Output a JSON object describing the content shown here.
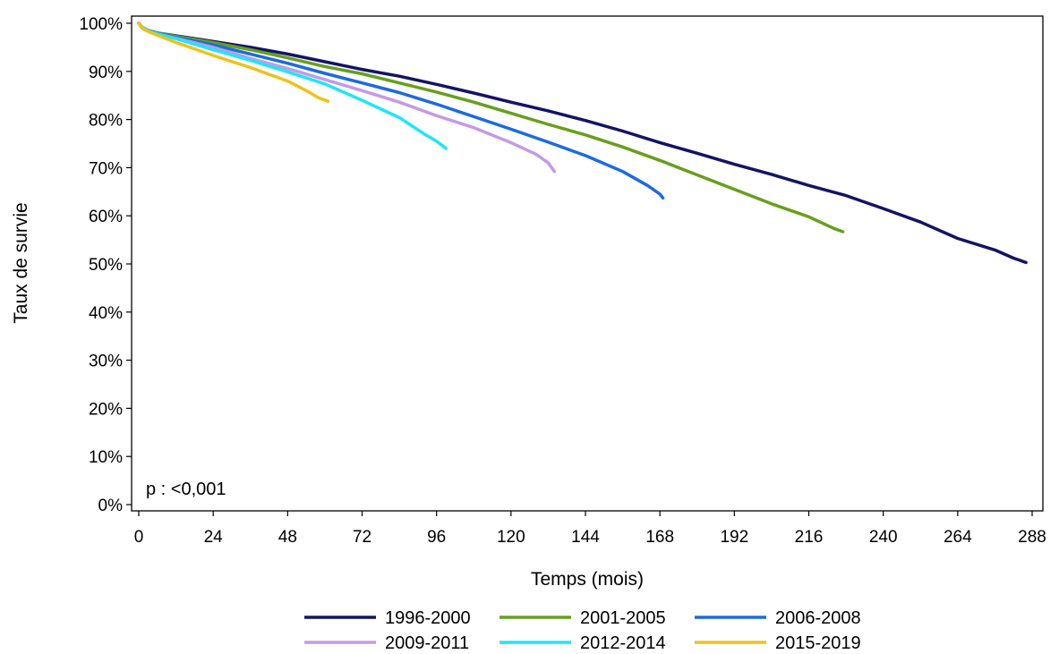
{
  "chart_data": {
    "type": "line",
    "title": "",
    "xlabel": "Temps (mois)",
    "ylabel": "Taux de survie",
    "xlim": [
      0,
      288
    ],
    "ylim": [
      0,
      100
    ],
    "xticks": [
      0,
      24,
      48,
      72,
      96,
      120,
      144,
      168,
      192,
      216,
      240,
      264,
      288
    ],
    "yticks": [
      0,
      10,
      20,
      30,
      40,
      50,
      60,
      70,
      80,
      90,
      100
    ],
    "ytick_labels": [
      "0%",
      "10%",
      "20%",
      "30%",
      "40%",
      "50%",
      "60%",
      "70%",
      "80%",
      "90%",
      "100%"
    ],
    "grid": false,
    "legend_position": "bottom",
    "annotation": "p : <0,001",
    "series": [
      {
        "name": "1996-2000",
        "color": "#141464",
        "x": [
          0,
          1,
          3,
          6,
          12,
          24,
          36,
          48,
          60,
          72,
          84,
          96,
          108,
          120,
          132,
          144,
          156,
          168,
          180,
          192,
          204,
          216,
          228,
          240,
          252,
          264,
          276,
          282,
          286
        ],
        "y": [
          100,
          99.2,
          98.5,
          98.0,
          97.4,
          96.2,
          95.0,
          93.6,
          92.0,
          90.4,
          89.0,
          87.3,
          85.5,
          83.6,
          81.8,
          79.8,
          77.6,
          75.2,
          73.0,
          70.7,
          68.6,
          66.3,
          64.2,
          61.5,
          58.7,
          55.3,
          52.9,
          51.2,
          50.3
        ]
      },
      {
        "name": "2001-2005",
        "color": "#669F1E",
        "x": [
          0,
          1,
          3,
          6,
          12,
          24,
          36,
          48,
          60,
          72,
          84,
          96,
          108,
          120,
          132,
          144,
          156,
          168,
          180,
          192,
          204,
          216,
          224,
          227
        ],
        "y": [
          100,
          99.2,
          98.5,
          98.0,
          97.3,
          96.0,
          94.5,
          92.8,
          91.0,
          89.5,
          87.6,
          85.7,
          83.6,
          81.3,
          79.0,
          76.8,
          74.3,
          71.5,
          68.5,
          65.5,
          62.5,
          59.8,
          57.4,
          56.7
        ]
      },
      {
        "name": "2006-2008",
        "color": "#1C6AE0",
        "x": [
          0,
          1,
          3,
          6,
          12,
          24,
          36,
          48,
          60,
          72,
          84,
          96,
          108,
          120,
          132,
          144,
          156,
          164,
          168,
          169
        ],
        "y": [
          100,
          99.2,
          98.5,
          97.9,
          97.1,
          95.5,
          93.6,
          91.7,
          89.6,
          87.6,
          85.6,
          83.2,
          80.6,
          78.0,
          75.3,
          72.5,
          69.2,
          66.3,
          64.5,
          63.7
        ]
      },
      {
        "name": "2009-2011",
        "color": "#C49AE6",
        "x": [
          0,
          1,
          3,
          6,
          12,
          24,
          36,
          48,
          60,
          72,
          84,
          96,
          108,
          120,
          128,
          132,
          134
        ],
        "y": [
          100,
          99.2,
          98.4,
          97.8,
          96.9,
          95.0,
          92.7,
          90.6,
          88.3,
          86.0,
          83.6,
          80.8,
          78.3,
          75.2,
          72.8,
          71.0,
          69.2
        ]
      },
      {
        "name": "2012-2014",
        "color": "#1EE6F5",
        "x": [
          0,
          1,
          3,
          6,
          12,
          24,
          36,
          48,
          60,
          72,
          84,
          92,
          96,
          99
        ],
        "y": [
          100,
          99.2,
          98.4,
          97.8,
          96.8,
          94.5,
          92.3,
          89.9,
          87.4,
          84.0,
          80.4,
          77.0,
          75.5,
          74.0
        ]
      },
      {
        "name": "2015-2019",
        "color": "#EEC21A",
        "x": [
          0,
          1,
          3,
          6,
          12,
          24,
          36,
          48,
          54,
          58,
          61
        ],
        "y": [
          100,
          99.0,
          98.3,
          97.5,
          96.0,
          93.3,
          90.8,
          88.0,
          86.0,
          84.5,
          83.8
        ]
      }
    ]
  }
}
